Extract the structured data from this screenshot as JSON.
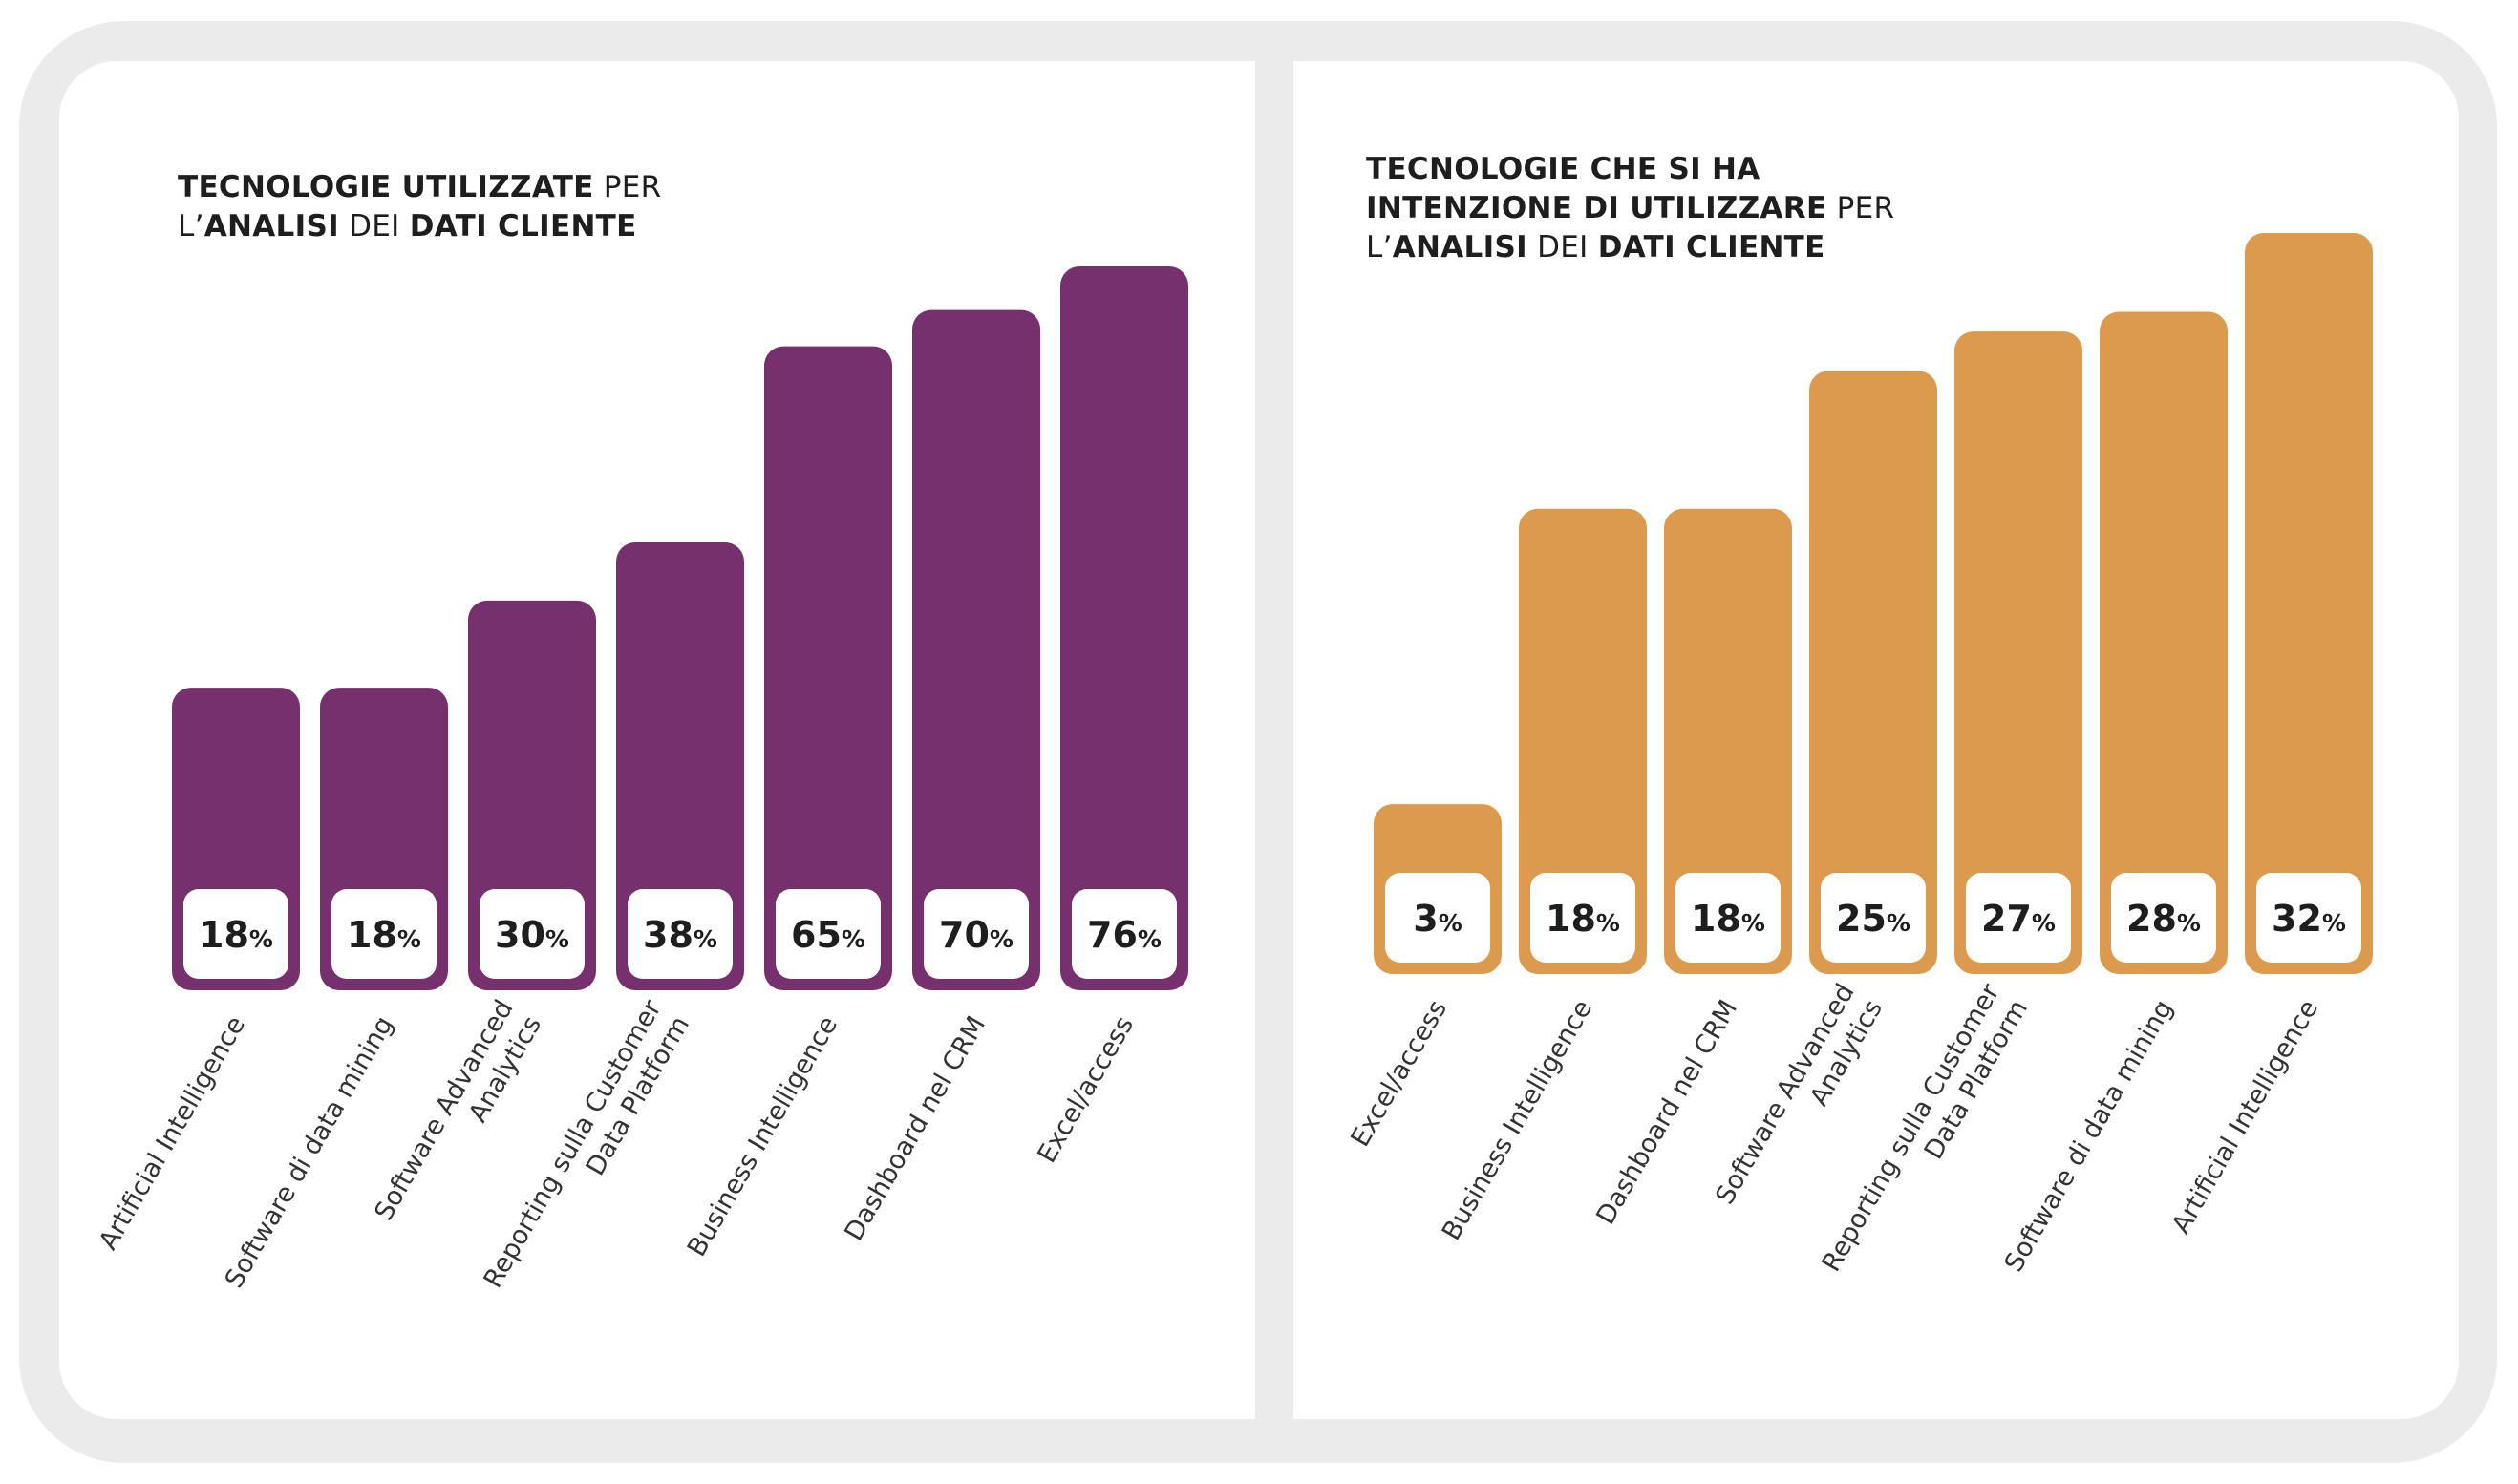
{
  "chart_data": [
    {
      "type": "bar",
      "title_parts": [
        {
          "text": "TECNOLOGIE UTILIZZATE",
          "bold": true
        },
        {
          "text": " PER",
          "bold": false
        },
        {
          "text": "\n",
          "bold": false
        },
        {
          "text": "L’",
          "bold": false
        },
        {
          "text": "ANALISI",
          "bold": true
        },
        {
          "text": " DEI ",
          "bold": false
        },
        {
          "text": "DATI CLIENTE",
          "bold": true
        }
      ],
      "categories": [
        [
          "Artificial Intelligence"
        ],
        [
          "Software di data mining"
        ],
        [
          "Software Advanced",
          "Analytics"
        ],
        [
          "Reporting sulla Customer",
          "Data Platform"
        ],
        [
          "Business Intelligence"
        ],
        [
          "Dashboard nel CRM"
        ],
        [
          "Excel/access"
        ]
      ],
      "values": [
        18,
        18,
        30,
        38,
        65,
        70,
        76
      ],
      "value_suffix": "%",
      "color": "#76306d",
      "ylim": [
        0,
        76
      ],
      "grid": false,
      "legend": "none"
    },
    {
      "type": "bar",
      "title_parts": [
        {
          "text": "TECNOLOGIE CHE SI HA",
          "bold": true
        },
        {
          "text": "\n",
          "bold": false
        },
        {
          "text": "INTENZIONE DI UTILIZZARE",
          "bold": true
        },
        {
          "text": " PER",
          "bold": false
        },
        {
          "text": "\n",
          "bold": false
        },
        {
          "text": "L’",
          "bold": false
        },
        {
          "text": "ANALISI",
          "bold": true
        },
        {
          "text": " DEI ",
          "bold": false
        },
        {
          "text": "DATI CLIENTE",
          "bold": true
        }
      ],
      "categories": [
        [
          "Excel/access"
        ],
        [
          "Business Intelligence"
        ],
        [
          "Dashboard nel CRM"
        ],
        [
          "Software Advanced",
          "Analytics"
        ],
        [
          "Reporting sulla Customer",
          "Data Platform"
        ],
        [
          "Software di data mining"
        ],
        [
          "Artificial Intelligence"
        ]
      ],
      "values": [
        3,
        18,
        18,
        25,
        27,
        28,
        32
      ],
      "value_suffix": "%",
      "color": "#dc9a4e",
      "ylim": [
        0,
        32
      ],
      "grid": false,
      "legend": "none"
    }
  ]
}
